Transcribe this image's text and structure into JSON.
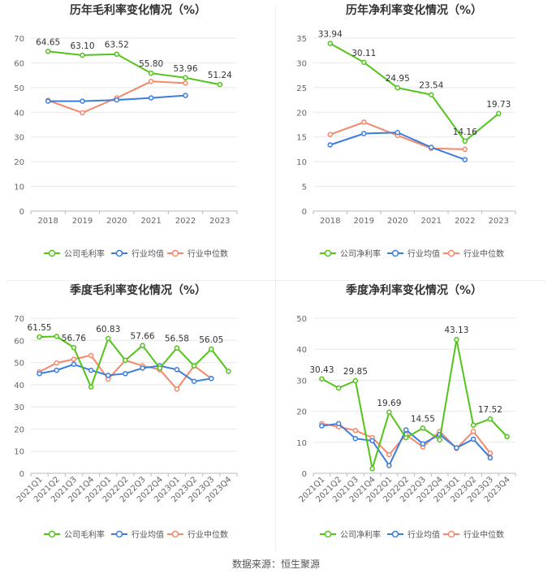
{
  "footer": "数据来源：恒生聚源",
  "colors": {
    "company": "#52c41a",
    "avg": "#3b7ddd",
    "median": "#f5886b",
    "grid": "#e8e8e8",
    "axis": "#bbbbbb",
    "tick": "#666666"
  },
  "chart_data": [
    {
      "type": "line",
      "title": "历年毛利率变化情况（%）",
      "categories": [
        "2018",
        "2019",
        "2020",
        "2021",
        "2022",
        "2023"
      ],
      "ylim": [
        0,
        70
      ],
      "yticks": [
        0,
        10,
        20,
        30,
        40,
        50,
        60,
        70
      ],
      "grid": true,
      "legend": "bottom",
      "label_rotate": false,
      "series": [
        {
          "name": "公司毛利率",
          "color": "#52c41a",
          "values": [
            64.65,
            63.1,
            63.52,
            55.8,
            53.96,
            51.24
          ],
          "labels": [
            0,
            1,
            2,
            3,
            4,
            5
          ]
        },
        {
          "name": "行业均值",
          "color": "#3b7ddd",
          "values": [
            44.5,
            44.5,
            45.0,
            45.8,
            46.8,
            null
          ],
          "labels": []
        },
        {
          "name": "行业中位数",
          "color": "#f5886b",
          "values": [
            44.8,
            39.8,
            45.8,
            52.5,
            51.8,
            null
          ],
          "labels": []
        }
      ],
      "data_labels": [
        "64.65",
        "63.10",
        "63.52",
        "55.80",
        "53.96",
        "51.24"
      ]
    },
    {
      "type": "line",
      "title": "历年净利率变化情况（%）",
      "categories": [
        "2018",
        "2019",
        "2020",
        "2021",
        "2022",
        "2023"
      ],
      "ylim": [
        0,
        35
      ],
      "yticks": [
        0,
        5,
        10,
        15,
        20,
        25,
        30,
        35
      ],
      "grid": true,
      "legend": "bottom",
      "label_rotate": false,
      "series": [
        {
          "name": "公司净利率",
          "color": "#52c41a",
          "values": [
            33.94,
            30.11,
            24.95,
            23.54,
            14.16,
            19.73
          ],
          "labels": [
            0,
            1,
            2,
            3,
            4,
            5
          ]
        },
        {
          "name": "行业均值",
          "color": "#3b7ddd",
          "values": [
            13.4,
            15.7,
            15.9,
            12.9,
            10.4,
            null
          ],
          "labels": []
        },
        {
          "name": "行业中位数",
          "color": "#f5886b",
          "values": [
            15.5,
            18.0,
            15.3,
            12.7,
            12.5,
            null
          ],
          "labels": []
        }
      ],
      "data_labels": [
        "33.94",
        "30.11",
        "24.95",
        "23.54",
        "14.16",
        "19.73"
      ]
    },
    {
      "type": "line",
      "title": "季度毛利率变化情况（%）",
      "categories": [
        "2021Q1",
        "2021Q2",
        "2021Q3",
        "2021Q4",
        "2022Q1",
        "2022Q2",
        "2022Q3",
        "2022Q4",
        "2023Q1",
        "2023Q2",
        "2023Q3",
        "2023Q4"
      ],
      "ylim": [
        0,
        70
      ],
      "yticks": [
        0,
        10,
        20,
        30,
        40,
        50,
        60,
        70
      ],
      "grid": true,
      "legend": "bottom",
      "label_rotate": true,
      "series": [
        {
          "name": "公司毛利率",
          "color": "#52c41a",
          "values": [
            61.55,
            61.8,
            56.76,
            39.0,
            60.83,
            51.0,
            57.66,
            47.5,
            56.58,
            48.5,
            56.05,
            46.0
          ],
          "labels": [
            0,
            2,
            4,
            6,
            8,
            10
          ]
        },
        {
          "name": "行业均值",
          "color": "#3b7ddd",
          "values": [
            45.0,
            46.5,
            49.2,
            46.5,
            44.2,
            45.0,
            47.5,
            48.5,
            46.8,
            41.5,
            42.8,
            null
          ],
          "labels": []
        },
        {
          "name": "行业中位数",
          "color": "#f5886b",
          "values": [
            45.8,
            49.8,
            51.5,
            53.2,
            42.5,
            51.0,
            48.5,
            46.8,
            38.0,
            48.5,
            42.8,
            null
          ],
          "labels": []
        }
      ],
      "data_labels": [
        "61.55",
        "56.76",
        "60.83",
        "57.66",
        "56.58",
        "56.05"
      ]
    },
    {
      "type": "line",
      "title": "季度净利率变化情况（%）",
      "categories": [
        "2021Q1",
        "2021Q2",
        "2021Q3",
        "2021Q4",
        "2022Q1",
        "2022Q2",
        "2022Q3",
        "2022Q4",
        "2023Q1",
        "2023Q2",
        "2023Q3",
        "2023Q4"
      ],
      "ylim": [
        0,
        50
      ],
      "yticks": [
        0,
        10,
        20,
        30,
        40,
        50
      ],
      "grid": true,
      "legend": "bottom",
      "label_rotate": true,
      "series": [
        {
          "name": "公司净利率",
          "color": "#52c41a",
          "values": [
            30.43,
            27.5,
            29.85,
            1.5,
            19.69,
            11.5,
            14.55,
            10.8,
            43.13,
            15.5,
            17.52,
            11.8
          ],
          "labels": [
            0,
            2,
            4,
            6,
            8,
            10
          ]
        },
        {
          "name": "行业均值",
          "color": "#3b7ddd",
          "values": [
            15.3,
            16.0,
            11.2,
            10.5,
            2.5,
            14.0,
            9.5,
            12.5,
            8.2,
            11.0,
            5.0,
            null
          ],
          "labels": []
        },
        {
          "name": "行业中位数",
          "color": "#f5886b",
          "values": [
            16.0,
            15.0,
            13.8,
            11.5,
            6.0,
            12.5,
            8.5,
            13.5,
            8.0,
            13.5,
            6.5,
            null
          ],
          "labels": []
        }
      ],
      "data_labels": [
        "30.43",
        "29.85",
        "19.69",
        "14.55",
        "43.13",
        "17.52"
      ]
    }
  ]
}
